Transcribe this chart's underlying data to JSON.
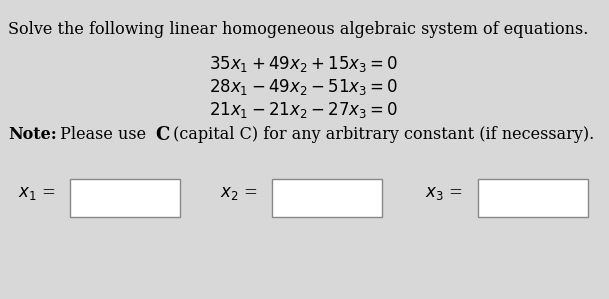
{
  "bg_color": "#d8d8d8",
  "title_text": "Solve the following linear homogeneous algebraic system of equations.",
  "eq1": "$35x_1 + 49x_2 + 15x_3 = 0$",
  "eq2": "$28x_1 - 49x_2 - 51x_3 = 0$",
  "eq3": "$21x_1 - 21x_2 - 27x_3 = 0$",
  "box_color": "#ffffff",
  "box_edge_color": "#888888",
  "text_color": "#000000",
  "title_fontsize": 11.5,
  "eq_fontsize": 12,
  "note_fontsize": 11.5,
  "label_fontsize": 12
}
